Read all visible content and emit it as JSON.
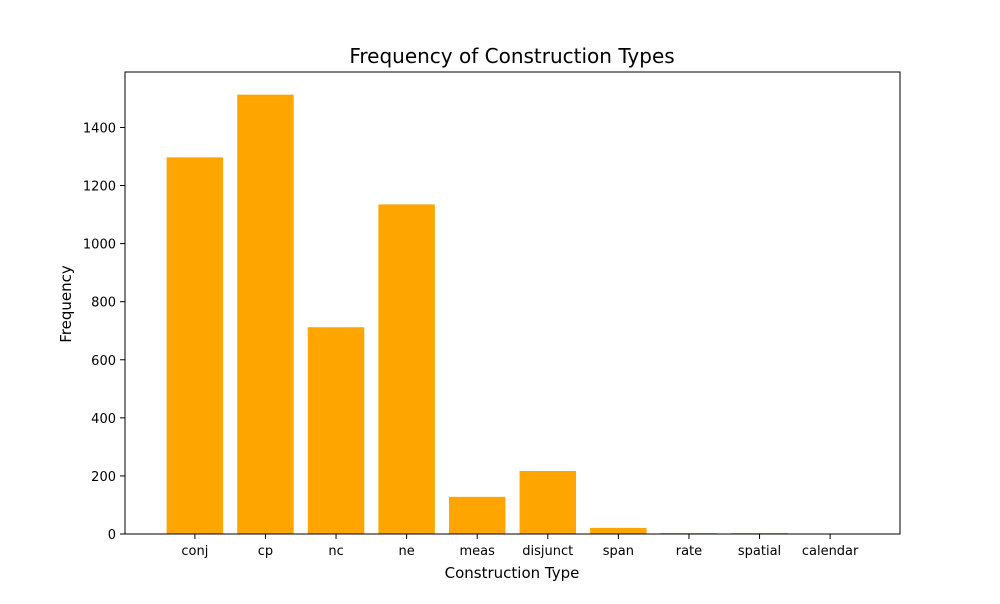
{
  "chart_data": {
    "type": "bar",
    "title": "Frequency of Construction Types",
    "xlabel": "Construction Type",
    "ylabel": "Frequency",
    "categories": [
      "conj",
      "cp",
      "nc",
      "ne",
      "meas",
      "disjunct",
      "span",
      "rate",
      "spatial",
      "calendar"
    ],
    "values": [
      1297,
      1513,
      712,
      1135,
      128,
      217,
      21,
      3,
      3,
      1
    ],
    "ylim": [
      0,
      1591
    ],
    "yticks": [
      0,
      200,
      400,
      600,
      800,
      1000,
      1200,
      1400
    ],
    "grid": false,
    "legend": "none",
    "bar_color": "#ffa500"
  }
}
